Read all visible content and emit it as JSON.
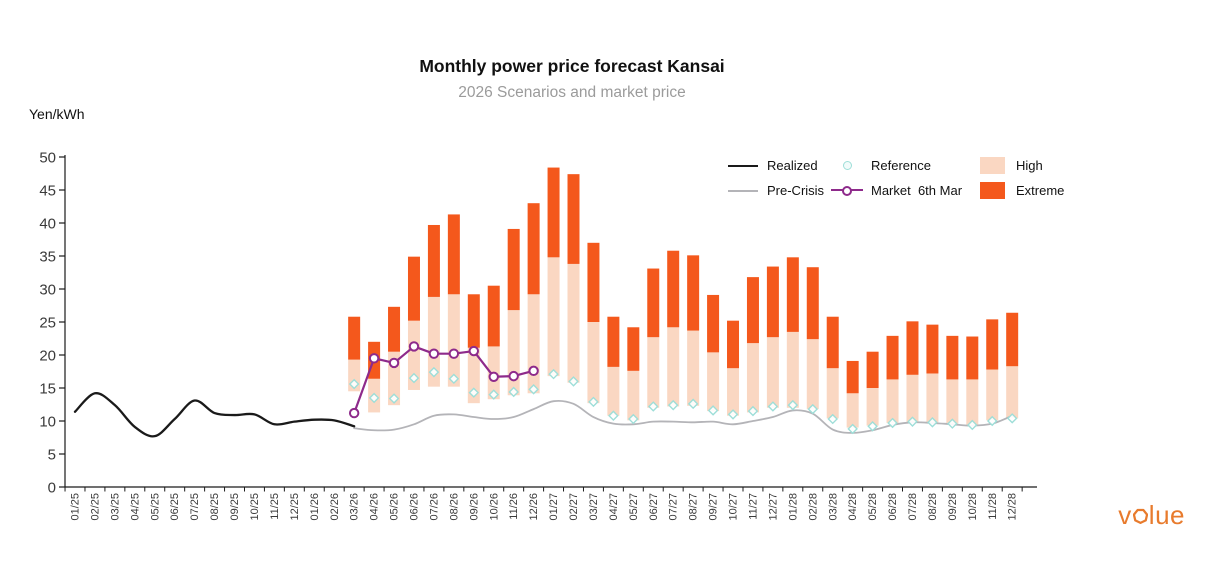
{
  "header": {
    "title": "Monthly power price forecast Kansai",
    "subtitle": "2026 Scenarios and market price"
  },
  "legend": {
    "realized": "Realized",
    "pre_crisis": "Pre-Crisis",
    "reference": "Reference",
    "market": "Market  6th Mar",
    "high": "High",
    "extreme": "Extreme"
  },
  "branding": {
    "logo_prefix": "v",
    "logo_suffix": "lue"
  },
  "colors": {
    "realized": "#1a1a1a",
    "pre_crisis": "#b4b4b8",
    "market": "#8e2a8b",
    "reference": "#9eded8",
    "high": "#fad7c2",
    "extreme": "#f4581c",
    "axis": "#1a1a1a",
    "tick_text": "#3a3a3a",
    "logo": "#e87b2d"
  },
  "chart_data": {
    "type": "combo",
    "title": "Monthly power price forecast Kansai",
    "subtitle": "2026 Scenarios and market price",
    "ylabel": "Yen/kWh",
    "ylim": [
      0,
      50
    ],
    "ytick_step": 5,
    "grid": false,
    "legend_position": "top-right",
    "categories": [
      "01/25",
      "02/25",
      "03/25",
      "04/25",
      "05/25",
      "06/25",
      "07/25",
      "08/25",
      "09/25",
      "10/25",
      "11/25",
      "12/25",
      "01/26",
      "02/26",
      "03/26",
      "04/26",
      "05/26",
      "06/26",
      "07/26",
      "08/26",
      "09/26",
      "10/26",
      "11/26",
      "12/26",
      "01/27",
      "02/27",
      "03/27",
      "04/27",
      "05/27",
      "06/27",
      "07/27",
      "08/27",
      "09/27",
      "10/27",
      "11/27",
      "12/27",
      "01/28",
      "02/28",
      "03/28",
      "04/28",
      "05/28",
      "06/28",
      "07/28",
      "08/28",
      "09/28",
      "10/28",
      "11/28",
      "12/28"
    ],
    "series": [
      {
        "name": "High",
        "type": "bar-range",
        "color_key": "high",
        "start": "03/26",
        "from": [
          14.5,
          11.3,
          12.4,
          14.7,
          15.2,
          15.2,
          12.7,
          13.3,
          13.9,
          14.2,
          16.8,
          15.8,
          12.7,
          10.8,
          10.1,
          12.0,
          12.2,
          12.3,
          11.5,
          10.8,
          11.3,
          12.0,
          12.0,
          11.8,
          10.4,
          9.0,
          9.3,
          9.7,
          9.8,
          9.8,
          9.6,
          9.4,
          10.1,
          10.4
        ],
        "to": [
          19.3,
          16.4,
          20.5,
          25.2,
          28.8,
          29.2,
          21.1,
          21.3,
          26.8,
          29.2,
          34.8,
          33.8,
          25.0,
          18.2,
          17.6,
          22.7,
          24.2,
          23.7,
          20.4,
          18.0,
          21.8,
          22.7,
          23.5,
          22.4,
          18.0,
          14.2,
          15.0,
          16.3,
          17.0,
          17.2,
          16.3,
          16.3,
          17.8,
          18.3
        ]
      },
      {
        "name": "Extreme",
        "type": "bar-range",
        "color_key": "extreme",
        "start": "03/26",
        "from": [
          19.3,
          16.4,
          20.5,
          25.2,
          28.8,
          29.2,
          21.1,
          21.3,
          26.8,
          29.2,
          34.8,
          33.8,
          25.0,
          18.2,
          17.6,
          22.7,
          24.2,
          23.7,
          20.4,
          18.0,
          21.8,
          22.7,
          23.5,
          22.4,
          18.0,
          14.2,
          15.0,
          16.3,
          17.0,
          17.2,
          16.3,
          16.3,
          17.8,
          18.3
        ],
        "to": [
          25.8,
          22.0,
          27.3,
          34.9,
          39.7,
          41.3,
          29.2,
          30.5,
          39.1,
          43.0,
          48.4,
          47.4,
          37.0,
          25.8,
          24.2,
          33.1,
          35.8,
          35.1,
          29.1,
          25.2,
          31.8,
          33.4,
          34.8,
          33.3,
          25.8,
          19.1,
          20.5,
          22.9,
          25.1,
          24.6,
          22.9,
          22.8,
          25.4,
          26.4
        ]
      },
      {
        "name": "Pre-Crisis",
        "type": "line",
        "smooth": true,
        "color_key": "pre_crisis",
        "width": 1.8,
        "start": "03/26",
        "values": [
          8.9,
          8.6,
          8.7,
          9.5,
          10.8,
          11.0,
          10.6,
          10.3,
          10.6,
          11.8,
          13.0,
          12.6,
          10.6,
          9.6,
          9.5,
          9.9,
          9.9,
          9.8,
          9.9,
          9.5,
          10.0,
          10.6,
          11.6,
          11.1,
          8.7,
          8.2,
          8.6,
          9.4,
          9.8,
          9.7,
          9.5,
          9.3,
          9.6,
          10.8
        ]
      },
      {
        "name": "Realized",
        "type": "line",
        "smooth": true,
        "color_key": "realized",
        "width": 2.3,
        "start": "01/25",
        "values": [
          11.4,
          14.2,
          12.4,
          9.1,
          7.7,
          10.3,
          13.1,
          11.2,
          10.9,
          11.0,
          9.5,
          9.9,
          10.2,
          10.1,
          9.2
        ]
      },
      {
        "name": "Reference",
        "type": "scatter",
        "marker": "diamond",
        "color_key": "reference",
        "start": "03/26",
        "values": [
          15.6,
          13.5,
          13.4,
          16.5,
          17.4,
          16.4,
          14.3,
          14.0,
          14.4,
          14.8,
          17.1,
          16.0,
          12.9,
          10.8,
          10.3,
          12.2,
          12.4,
          12.6,
          11.6,
          11.0,
          11.5,
          12.2,
          12.4,
          11.8,
          10.3,
          8.8,
          9.2,
          9.7,
          9.9,
          9.8,
          9.6,
          9.4,
          10.0,
          10.4
        ]
      },
      {
        "name": "Market 6th Mar",
        "type": "line",
        "smooth": false,
        "marker": "circle",
        "color_key": "market",
        "width": 2.2,
        "start": "03/26",
        "values": [
          11.2,
          19.5,
          18.8,
          21.3,
          20.2,
          20.2,
          20.6,
          16.7,
          16.8,
          17.6
        ]
      }
    ]
  }
}
